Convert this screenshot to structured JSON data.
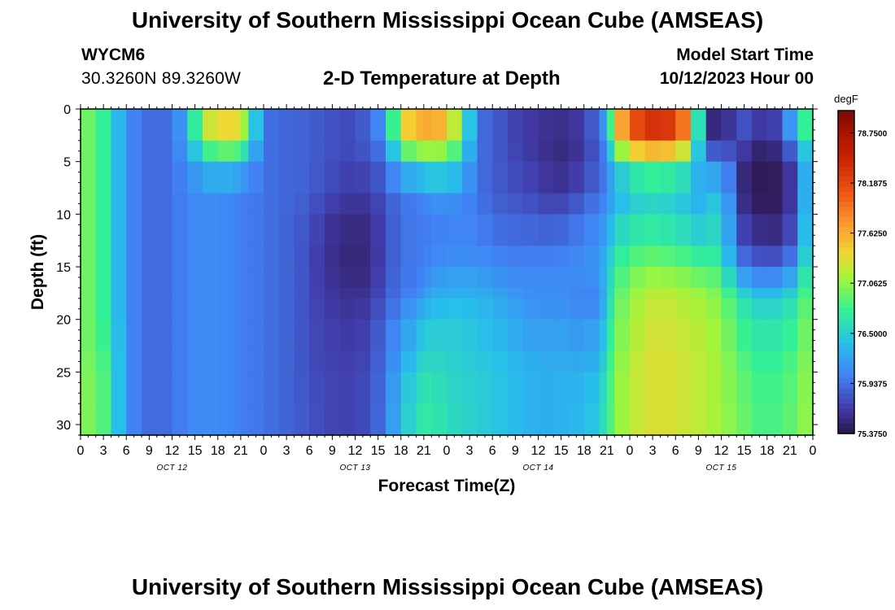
{
  "header": {
    "title": "University of Southern Mississippi Ocean Cube (AMSEAS)",
    "station": "WYCM6",
    "coordinates": "30.3260N  89.3260W",
    "subtitle": "2-D Temperature at Depth",
    "model_start_label": "Model Start Time",
    "model_start_value": "10/12/2023 Hour 00"
  },
  "footer": {
    "title": "University of Southern Mississippi Ocean Cube (AMSEAS)"
  },
  "chart_data": {
    "type": "heatmap",
    "title": "2-D Temperature at Depth",
    "xlabel": "Forecast Time(Z)",
    "ylabel": "Depth (ft)",
    "x_range_hours": [
      0,
      96
    ],
    "y_range_ft": [
      0,
      31
    ],
    "x_tick_labels": [
      "0",
      "3",
      "6",
      "9",
      "12",
      "15",
      "18",
      "21",
      "0",
      "3",
      "6",
      "9",
      "12",
      "15",
      "18",
      "21",
      "0",
      "3",
      "6",
      "9",
      "12",
      "15",
      "18",
      "21",
      "0",
      "3",
      "6",
      "9",
      "12",
      "15",
      "18",
      "21",
      "0"
    ],
    "y_ticks": [
      0,
      5,
      10,
      15,
      20,
      25,
      30
    ],
    "date_labels": [
      {
        "hour": 12,
        "label": "OCT 12"
      },
      {
        "hour": 36,
        "label": "OCT 13"
      },
      {
        "hour": 60,
        "label": "OCT 14"
      },
      {
        "hour": 84,
        "label": "OCT 15"
      }
    ],
    "colorbar": {
      "unit": "degF",
      "range": [
        75.375,
        79.0
      ],
      "tick_labels": [
        "78.7500",
        "78.1875",
        "77.6250",
        "77.0625",
        "76.5000",
        "75.9375",
        "75.3750"
      ],
      "tick_values": [
        78.75,
        78.1875,
        77.625,
        77.0625,
        76.5,
        75.9375,
        75.375
      ]
    },
    "grid": {
      "hours": [
        0,
        2,
        4,
        6,
        8,
        10,
        12,
        14,
        16,
        18,
        20,
        21,
        22,
        24,
        26,
        28,
        30,
        32,
        34,
        36,
        38,
        40,
        42,
        44,
        45,
        46,
        48,
        50,
        52,
        54,
        56,
        58,
        60,
        62,
        64,
        66,
        68,
        69,
        70,
        72,
        74,
        76,
        78,
        80,
        82,
        84,
        86,
        88,
        90,
        92,
        94,
        96
      ],
      "depths_ft": [
        0,
        3,
        5,
        8,
        10,
        13,
        15,
        17,
        18,
        20,
        23,
        25,
        28,
        31
      ],
      "temperature_degF": [
        [
          77.0,
          77.0,
          77.0,
          77.0,
          77.0,
          77.0,
          77.0,
          77.0,
          77.0,
          77.0,
          77.0,
          77.0,
          77.0,
          77.0
        ],
        [
          76.9,
          76.9,
          76.9,
          76.9,
          76.9,
          76.9,
          76.9,
          76.9,
          76.9,
          76.9,
          76.9,
          77.0,
          77.0,
          77.0
        ],
        [
          76.6,
          76.6,
          76.6,
          76.6,
          76.6,
          76.6,
          76.6,
          76.6,
          76.6,
          76.6,
          76.7,
          76.7,
          76.7,
          76.7
        ],
        [
          76.1,
          76.1,
          76.1,
          76.1,
          76.1,
          76.1,
          76.1,
          76.1,
          76.1,
          76.1,
          76.1,
          76.1,
          76.1,
          76.1
        ],
        [
          75.95,
          75.95,
          75.95,
          75.95,
          75.95,
          75.95,
          75.95,
          75.95,
          75.95,
          75.95,
          75.95,
          75.95,
          75.95,
          75.95
        ],
        [
          75.88,
          75.88,
          75.88,
          75.88,
          75.88,
          75.88,
          75.88,
          75.88,
          75.88,
          75.88,
          75.88,
          75.88,
          75.88,
          75.88
        ],
        [
          75.95,
          75.95,
          75.95,
          75.95,
          75.95,
          75.95,
          75.95,
          75.95,
          75.95,
          75.95,
          75.95,
          75.95,
          75.95,
          75.95
        ],
        [
          76.3,
          76.3,
          76.1,
          76.05,
          76.05,
          76.05,
          76.05,
          76.05,
          76.05,
          76.05,
          76.05,
          76.05,
          76.05,
          76.05
        ],
        [
          77.3,
          77.0,
          76.4,
          76.1,
          76.1,
          76.1,
          76.1,
          76.1,
          76.1,
          76.1,
          76.1,
          76.1,
          76.1,
          76.1
        ],
        [
          77.5,
          77.3,
          76.5,
          76.1,
          76.1,
          76.1,
          76.1,
          76.1,
          76.1,
          76.1,
          76.1,
          76.1,
          76.1,
          76.1
        ],
        [
          77.5,
          77.3,
          76.5,
          76.05,
          76.05,
          76.05,
          76.05,
          76.05,
          76.05,
          76.05,
          76.05,
          76.05,
          76.05,
          76.05
        ],
        [
          77.4,
          77.2,
          76.4,
          76.0,
          76.0,
          76.0,
          76.0,
          76.0,
          76.0,
          76.0,
          76.0,
          76.0,
          76.0,
          76.0
        ],
        [
          77.0,
          76.8,
          76.2,
          76.0,
          76.0,
          76.0,
          76.0,
          76.0,
          76.0,
          76.0,
          76.0,
          76.0,
          76.0,
          76.0
        ],
        [
          75.95,
          75.95,
          75.95,
          75.95,
          75.95,
          75.95,
          75.95,
          75.95,
          75.95,
          75.95,
          75.95,
          75.95,
          75.95,
          75.95
        ],
        [
          75.9,
          75.9,
          75.9,
          75.9,
          75.9,
          75.9,
          75.9,
          75.9,
          75.9,
          75.9,
          75.9,
          75.9,
          75.9,
          75.9
        ],
        [
          75.88,
          75.88,
          75.88,
          75.88,
          75.85,
          75.85,
          75.85,
          75.85,
          75.85,
          75.85,
          75.85,
          75.85,
          75.85,
          75.85
        ],
        [
          75.85,
          75.85,
          75.85,
          75.85,
          75.8,
          75.75,
          75.75,
          75.75,
          75.75,
          75.75,
          75.75,
          75.75,
          75.8,
          75.8
        ],
        [
          75.8,
          75.8,
          75.8,
          75.75,
          75.65,
          75.6,
          75.6,
          75.62,
          75.65,
          75.68,
          75.7,
          75.7,
          75.72,
          75.72
        ],
        [
          75.75,
          75.75,
          75.75,
          75.7,
          75.6,
          75.55,
          75.55,
          75.6,
          75.6,
          75.65,
          75.68,
          75.7,
          75.7,
          75.7
        ],
        [
          75.75,
          75.75,
          75.7,
          75.6,
          75.55,
          75.5,
          75.5,
          75.55,
          75.58,
          75.62,
          75.65,
          75.68,
          75.7,
          75.7
        ],
        [
          75.9,
          75.9,
          75.8,
          75.7,
          75.6,
          75.55,
          75.55,
          75.58,
          75.62,
          75.7,
          75.75,
          75.75,
          75.78,
          75.78
        ],
        [
          76.3,
          76.1,
          75.9,
          75.8,
          75.75,
          75.75,
          75.75,
          75.8,
          75.82,
          75.9,
          75.95,
          75.98,
          76.0,
          76.0
        ],
        [
          77.5,
          77.2,
          76.5,
          76.0,
          75.95,
          75.95,
          75.95,
          75.98,
          76.0,
          76.1,
          76.2,
          76.3,
          76.4,
          76.4
        ],
        [
          77.7,
          77.4,
          76.6,
          76.0,
          75.98,
          75.98,
          75.98,
          76.0,
          76.1,
          76.3,
          76.4,
          76.55,
          76.6,
          76.65
        ],
        [
          77.8,
          77.5,
          76.7,
          76.1,
          76.0,
          76.0,
          76.0,
          76.1,
          76.2,
          76.4,
          76.5,
          76.6,
          76.7,
          76.7
        ],
        [
          77.8,
          77.5,
          76.7,
          76.2,
          76.0,
          76.0,
          76.1,
          76.2,
          76.3,
          76.45,
          76.55,
          76.6,
          76.7,
          76.7
        ],
        [
          77.7,
          77.4,
          76.7,
          76.2,
          76.05,
          76.05,
          76.15,
          76.25,
          76.35,
          76.45,
          76.5,
          76.55,
          76.6,
          76.6
        ],
        [
          77.0,
          76.8,
          76.5,
          76.1,
          76.05,
          76.05,
          76.15,
          76.25,
          76.35,
          76.45,
          76.5,
          76.5,
          76.55,
          76.55
        ],
        [
          75.95,
          75.95,
          75.95,
          75.95,
          76.0,
          76.05,
          76.15,
          76.25,
          76.35,
          76.4,
          76.45,
          76.5,
          76.5,
          76.5
        ],
        [
          75.85,
          75.85,
          75.85,
          75.85,
          75.9,
          76.0,
          76.1,
          76.2,
          76.3,
          76.35,
          76.4,
          76.45,
          76.45,
          76.45
        ],
        [
          75.75,
          75.75,
          75.75,
          75.8,
          75.85,
          75.95,
          76.05,
          76.15,
          76.2,
          76.3,
          76.35,
          76.4,
          76.4,
          76.4
        ],
        [
          75.65,
          75.65,
          75.7,
          75.75,
          75.85,
          75.95,
          76.05,
          76.1,
          76.15,
          76.2,
          76.3,
          76.35,
          76.35,
          76.35
        ],
        [
          75.65,
          75.6,
          75.62,
          75.7,
          75.8,
          75.95,
          76.05,
          76.1,
          76.1,
          76.15,
          76.25,
          76.3,
          76.3,
          76.3
        ],
        [
          75.6,
          75.55,
          75.55,
          75.62,
          75.78,
          75.95,
          76.05,
          76.1,
          76.1,
          76.15,
          76.25,
          76.3,
          76.3,
          76.3
        ],
        [
          75.6,
          75.55,
          75.55,
          75.65,
          75.85,
          76.0,
          76.1,
          76.1,
          76.1,
          76.15,
          76.25,
          76.3,
          76.35,
          76.35
        ],
        [
          75.7,
          75.65,
          75.65,
          75.8,
          75.95,
          76.05,
          76.1,
          76.05,
          76.0,
          76.1,
          76.2,
          76.3,
          76.35,
          76.35
        ],
        [
          76.0,
          75.9,
          75.85,
          75.95,
          76.05,
          76.15,
          76.2,
          76.1,
          76.05,
          76.2,
          76.3,
          76.4,
          76.5,
          76.5
        ],
        [
          76.4,
          76.2,
          76.0,
          76.05,
          76.15,
          76.3,
          76.4,
          76.4,
          76.4,
          76.5,
          76.6,
          76.65,
          76.7,
          76.7
        ],
        [
          77.4,
          77.2,
          76.5,
          76.25,
          76.4,
          76.6,
          76.7,
          76.8,
          76.85,
          76.9,
          76.95,
          77.0,
          77.0,
          77.0
        ],
        [
          78.2,
          77.9,
          76.8,
          76.4,
          76.55,
          76.75,
          76.9,
          77.0,
          77.05,
          77.1,
          77.15,
          77.2,
          77.2,
          77.2
        ],
        [
          78.5,
          78.1,
          77.0,
          76.5,
          76.6,
          76.8,
          77.0,
          77.15,
          77.2,
          77.25,
          77.3,
          77.3,
          77.3,
          77.3
        ],
        [
          78.6,
          78.2,
          77.0,
          76.5,
          76.6,
          76.8,
          77.0,
          77.2,
          77.25,
          77.3,
          77.35,
          77.35,
          77.35,
          77.35
        ],
        [
          78.4,
          78.0,
          76.9,
          76.45,
          76.55,
          76.75,
          76.95,
          77.15,
          77.2,
          77.25,
          77.3,
          77.3,
          77.3,
          77.3
        ],
        [
          77.8,
          77.5,
          76.7,
          76.35,
          76.45,
          76.65,
          76.9,
          77.1,
          77.15,
          77.2,
          77.25,
          77.25,
          77.25,
          77.25
        ],
        [
          75.6,
          75.6,
          76.0,
          76.2,
          76.35,
          76.55,
          76.8,
          77.0,
          77.1,
          77.15,
          77.2,
          77.2,
          77.2,
          77.2
        ],
        [
          75.45,
          75.5,
          76.2,
          76.6,
          76.65,
          76.7,
          76.8,
          76.95,
          77.0,
          77.05,
          77.1,
          77.1,
          77.1,
          77.1
        ],
        [
          75.7,
          75.8,
          75.6,
          75.6,
          75.7,
          75.85,
          76.1,
          76.5,
          76.7,
          76.8,
          76.9,
          76.95,
          77.0,
          77.0
        ],
        [
          75.9,
          75.7,
          75.45,
          75.45,
          75.5,
          75.7,
          75.95,
          76.3,
          76.5,
          76.65,
          76.75,
          76.8,
          76.85,
          76.85
        ],
        [
          75.5,
          75.45,
          75.4,
          75.4,
          75.45,
          75.6,
          75.85,
          76.2,
          76.45,
          76.6,
          76.7,
          76.75,
          76.8,
          76.8
        ],
        [
          76.0,
          75.8,
          75.5,
          75.45,
          75.5,
          75.65,
          75.95,
          76.3,
          76.5,
          76.65,
          76.75,
          76.8,
          76.85,
          76.85
        ],
        [
          76.6,
          76.2,
          75.8,
          75.75,
          75.8,
          75.95,
          76.2,
          76.5,
          76.65,
          76.75,
          76.85,
          76.9,
          76.95,
          76.95
        ],
        [
          77.2,
          77.0,
          76.8,
          76.8,
          76.85,
          76.9,
          76.95,
          77.0,
          77.05,
          77.1,
          77.1,
          77.15,
          77.15,
          77.15
        ]
      ]
    }
  }
}
